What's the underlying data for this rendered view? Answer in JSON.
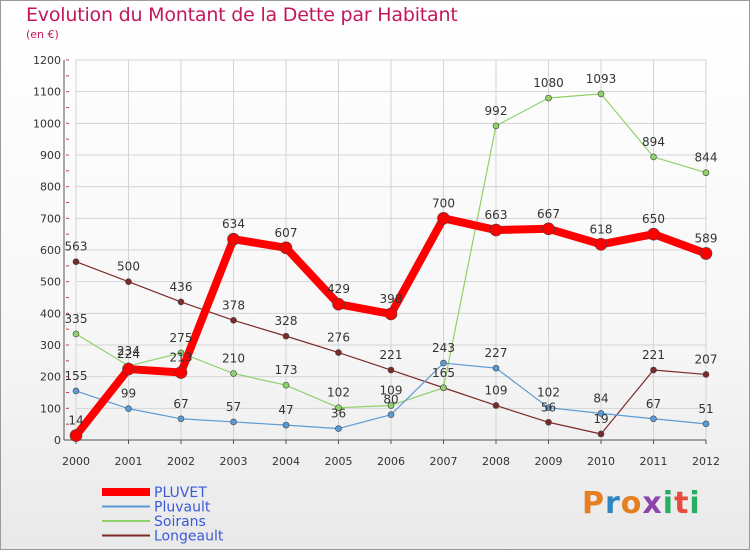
{
  "title": "Evolution du Montant de la Dette par Habitant",
  "subtitle": "(en €)",
  "logo": {
    "text": "Proxiti",
    "letters": [
      "P",
      "r",
      "o",
      "x",
      "i",
      "t",
      "i"
    ],
    "colors": [
      "#e67e22",
      "#2e86c1",
      "#e67e22",
      "#8e44ad",
      "#27ae60",
      "#e74c3c",
      "#27ae60"
    ]
  },
  "chart_data": {
    "type": "line",
    "x": [
      "2000",
      "2001",
      "2002",
      "2003",
      "2004",
      "2005",
      "2006",
      "2007",
      "2008",
      "2009",
      "2010",
      "2011",
      "2012"
    ],
    "ylim": [
      0,
      1200
    ],
    "yticks": [
      "0",
      "100",
      "200",
      "300",
      "400",
      "500",
      "600",
      "700",
      "800",
      "900",
      "1000",
      "1100",
      "1200"
    ],
    "grid": true,
    "legend_position": "bottom-left",
    "series": [
      {
        "name": "Longeault",
        "color": "#7b2a2a",
        "width": 1.2,
        "marker": 3,
        "values": [
          563,
          500,
          436,
          378,
          328,
          276,
          221,
          165,
          109,
          56,
          19,
          221,
          207
        ],
        "labels": [
          "563",
          "500",
          "436",
          "378",
          "328",
          "276",
          "221",
          "165",
          "109",
          "56",
          "19",
          "221",
          "207"
        ]
      },
      {
        "name": "Soirans",
        "color": "#8fd16a",
        "width": 1.2,
        "marker": 3,
        "values": [
          335,
          234,
          275,
          210,
          173,
          102,
          109,
          165,
          992,
          1080,
          1093,
          894,
          844
        ],
        "labels": [
          "335",
          "234",
          "275",
          "210",
          "173",
          "102",
          "109",
          "",
          "992",
          "1080",
          "1093",
          "894",
          "844"
        ]
      },
      {
        "name": "Pluvault",
        "color": "#5b9bd5",
        "width": 1.2,
        "marker": 3,
        "values": [
          155,
          99,
          67,
          57,
          47,
          36,
          80,
          243,
          227,
          102,
          84,
          67,
          51
        ],
        "labels": [
          "155",
          "99",
          "67",
          "57",
          "47",
          "36",
          "80",
          "243",
          "227",
          "102",
          "84",
          "67",
          "51"
        ]
      },
      {
        "name": "PLUVET",
        "color": "#ff0000",
        "width": 8,
        "marker": 6,
        "values": [
          14,
          224,
          213,
          634,
          607,
          429,
          398,
          700,
          663,
          667,
          618,
          650,
          589
        ],
        "labels": [
          "14",
          "224",
          "213",
          "634",
          "607",
          "429",
          "398",
          "700",
          "663",
          "667",
          "618",
          "650",
          "589"
        ]
      }
    ],
    "legend": [
      {
        "name": "PLUVET",
        "color": "#ff0000",
        "text_color": "#3a5bd9"
      },
      {
        "name": "Pluvault",
        "color": "#5b9bd5",
        "text_color": "#3a5bd9"
      },
      {
        "name": "Soirans",
        "color": "#8fd16a",
        "text_color": "#3a5bd9"
      },
      {
        "name": "Longeault",
        "color": "#7b2a2a",
        "text_color": "#3a5bd9"
      }
    ]
  }
}
